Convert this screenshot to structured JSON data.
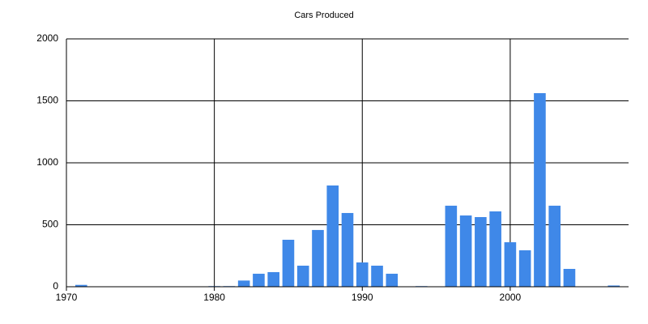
{
  "chart_data": {
    "type": "bar",
    "title": "Cars Produced",
    "x": [
      1971,
      1980,
      1981,
      1982,
      1983,
      1984,
      1985,
      1986,
      1987,
      1988,
      1989,
      1990,
      1991,
      1992,
      1994,
      1996,
      1997,
      1998,
      1999,
      2000,
      2001,
      2002,
      2003,
      2004,
      2007
    ],
    "values": [
      15,
      5,
      5,
      50,
      105,
      118,
      379,
      170,
      458,
      817,
      595,
      196,
      170,
      105,
      5,
      654,
      575,
      562,
      608,
      359,
      294,
      1562,
      654,
      144,
      10
    ],
    "color": "#3f88e8",
    "xlim": [
      1970,
      2008
    ],
    "xticks": [
      1970,
      1980,
      1990,
      2000
    ],
    "ylim": [
      0,
      2000
    ],
    "yticks": [
      0,
      500,
      1000,
      1500,
      2000
    ],
    "grid": true
  }
}
